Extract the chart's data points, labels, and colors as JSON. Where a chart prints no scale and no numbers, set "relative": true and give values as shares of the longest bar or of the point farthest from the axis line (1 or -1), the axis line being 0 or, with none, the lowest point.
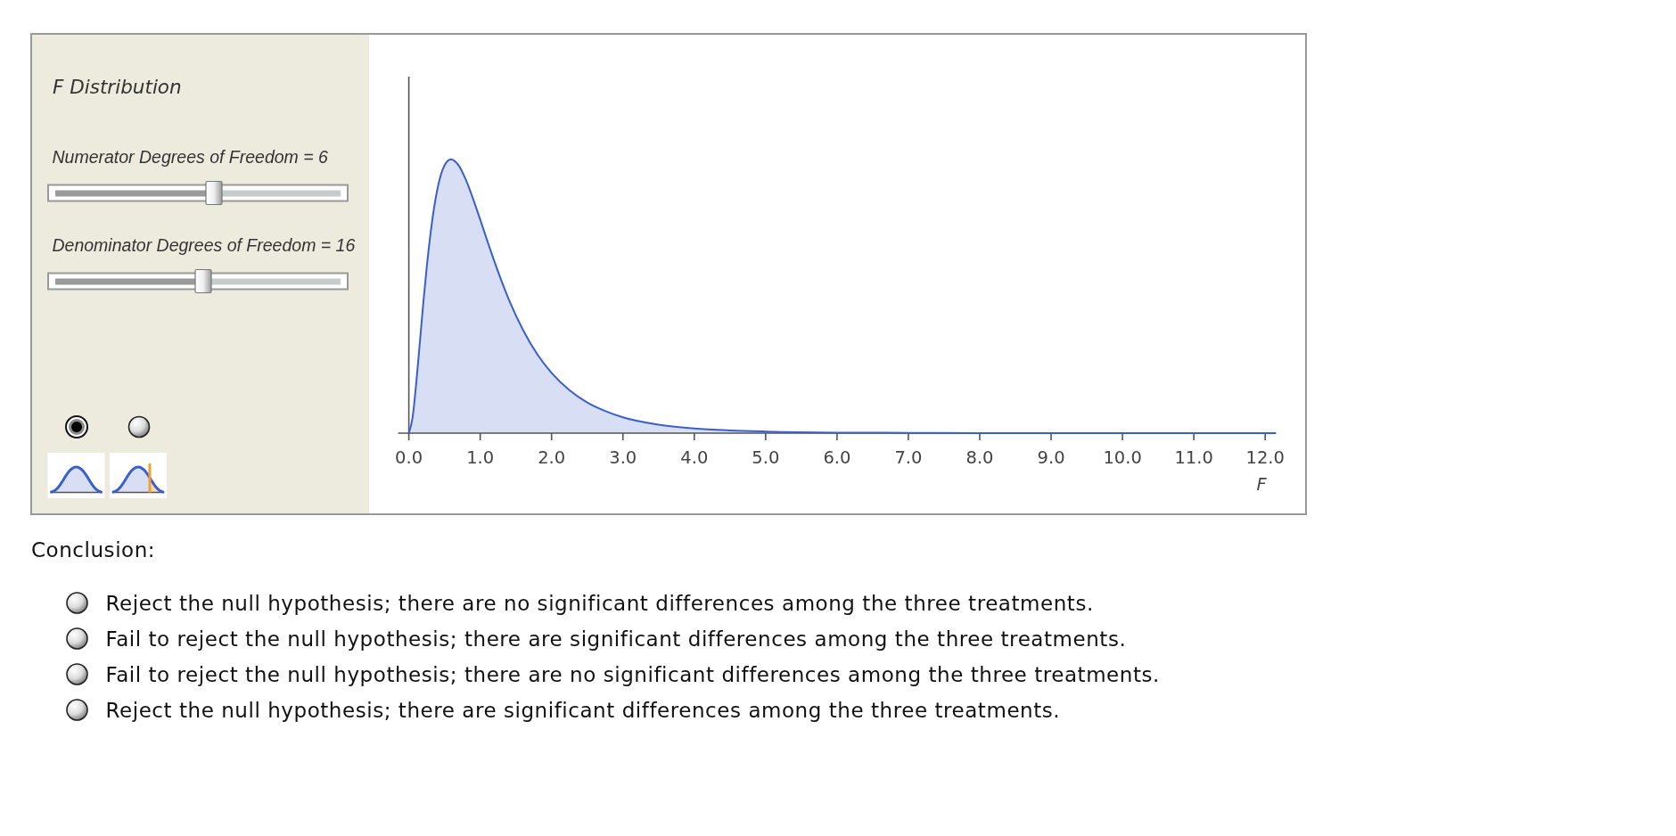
{
  "chart_data": {
    "type": "area",
    "title": "F Distribution",
    "xlabel": "F",
    "relative": true,
    "color": "#3a5fcd",
    "x": [
      0,
      0.05,
      0.1,
      0.15,
      0.2,
      0.25,
      0.3,
      0.35,
      0.4,
      0.5,
      0.59,
      0.7,
      0.8,
      0.9,
      1.0,
      1.1,
      1.2,
      1.4,
      1.6,
      1.8,
      2.0,
      2.25,
      2.5,
      2.75,
      3.0,
      3.5,
      4.0,
      4.5,
      5.0,
      6.0,
      7.0,
      8.0,
      9.0,
      10.0,
      11.0,
      12.15
    ],
    "values": [
      0,
      0.053,
      0.173,
      0.319,
      0.468,
      0.604,
      0.721,
      0.817,
      0.891,
      0.978,
      1,
      0.977,
      0.925,
      0.856,
      0.78,
      0.702,
      0.626,
      0.489,
      0.377,
      0.288,
      0.22,
      0.157,
      0.112,
      0.081,
      0.058,
      0.031,
      0.017,
      0.01,
      0.006,
      0.002,
      0.001,
      0,
      0,
      0,
      0,
      0
    ],
    "xlim": [
      -0.15,
      12.15
    ],
    "xticks": [
      {
        "value": 0,
        "label": "0.0"
      },
      {
        "value": 1,
        "label": "1.0"
      },
      {
        "value": 2,
        "label": "2.0"
      },
      {
        "value": 3,
        "label": "3.0"
      },
      {
        "value": 4,
        "label": "4.0"
      },
      {
        "value": 5,
        "label": "5.0"
      },
      {
        "value": 6,
        "label": "6.0"
      },
      {
        "value": 7,
        "label": "7.0"
      },
      {
        "value": 8,
        "label": "8.0"
      },
      {
        "value": 9,
        "label": "9.0"
      },
      {
        "value": 10,
        "label": "10.0"
      },
      {
        "value": 11,
        "label": "11.0"
      },
      {
        "value": 12,
        "label": "12.0"
      }
    ],
    "annotations": [
      "Numerator Degrees of Freedom = 6",
      "Denominator Degrees of Freedom = 16",
      "Conclusion:",
      "Reject the null hypothesis; there are no significant differences among the three treatments.",
      "Fail to reject the null hypothesis; there are significant differences among the three treatments.",
      "Fail to reject the null hypothesis; there are no significant differences among the three treatments.",
      "Reject the null hypothesis; there are significant differences among the three treatments."
    ]
  }
}
